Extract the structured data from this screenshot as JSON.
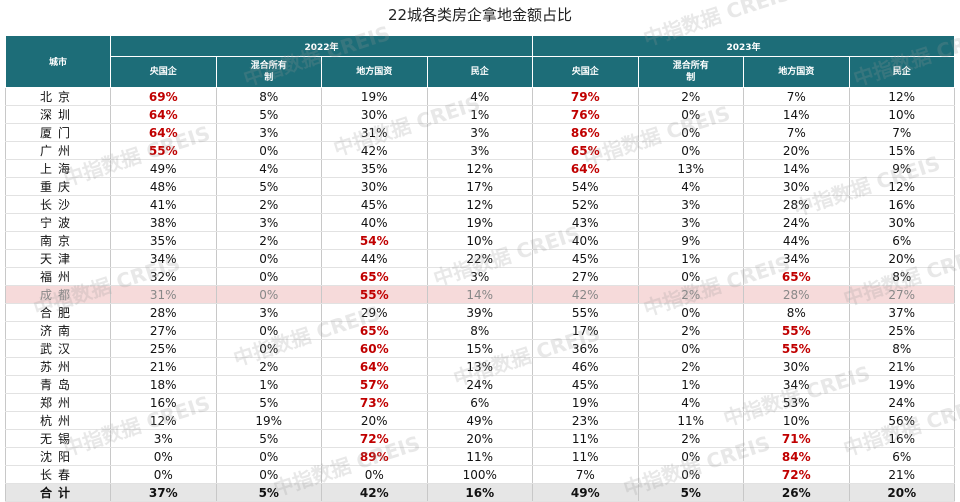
{
  "title": "22城各类房企拿地金额占比",
  "watermark": "中指数据 CREIS",
  "header": {
    "city": "城市",
    "years": [
      "2022年",
      "2023年"
    ],
    "columns": [
      "央国企",
      "混合所有制",
      "地方国资",
      "民企"
    ]
  },
  "highlight_row": 11,
  "total_row": 22,
  "rows": [
    {
      "city": "北京",
      "cells": [
        "69%",
        "8%",
        "19%",
        "4%",
        "79%",
        "2%",
        "7%",
        "12%"
      ],
      "red": [
        0,
        4
      ]
    },
    {
      "city": "深圳",
      "cells": [
        "64%",
        "5%",
        "30%",
        "1%",
        "76%",
        "0%",
        "14%",
        "10%"
      ],
      "red": [
        0,
        4
      ]
    },
    {
      "city": "厦门",
      "cells": [
        "64%",
        "3%",
        "31%",
        "3%",
        "86%",
        "0%",
        "7%",
        "7%"
      ],
      "red": [
        0,
        4
      ]
    },
    {
      "city": "广州",
      "cells": [
        "55%",
        "0%",
        "42%",
        "3%",
        "65%",
        "0%",
        "20%",
        "15%"
      ],
      "red": [
        0,
        4
      ]
    },
    {
      "city": "上海",
      "cells": [
        "49%",
        "4%",
        "35%",
        "12%",
        "64%",
        "13%",
        "14%",
        "9%"
      ],
      "red": [
        4
      ]
    },
    {
      "city": "重庆",
      "cells": [
        "48%",
        "5%",
        "30%",
        "17%",
        "54%",
        "4%",
        "30%",
        "12%"
      ],
      "red": []
    },
    {
      "city": "长沙",
      "cells": [
        "41%",
        "2%",
        "45%",
        "12%",
        "52%",
        "3%",
        "28%",
        "16%"
      ],
      "red": []
    },
    {
      "city": "宁波",
      "cells": [
        "38%",
        "3%",
        "40%",
        "19%",
        "43%",
        "3%",
        "24%",
        "30%"
      ],
      "red": []
    },
    {
      "city": "南京",
      "cells": [
        "35%",
        "2%",
        "54%",
        "10%",
        "40%",
        "9%",
        "44%",
        "6%"
      ],
      "red": [
        2
      ]
    },
    {
      "city": "天津",
      "cells": [
        "34%",
        "0%",
        "44%",
        "22%",
        "45%",
        "1%",
        "34%",
        "20%"
      ],
      "red": []
    },
    {
      "city": "福州",
      "cells": [
        "32%",
        "0%",
        "65%",
        "3%",
        "27%",
        "0%",
        "65%",
        "8%"
      ],
      "red": [
        2,
        6
      ]
    },
    {
      "city": "成都",
      "cells": [
        "31%",
        "0%",
        "55%",
        "14%",
        "42%",
        "2%",
        "28%",
        "27%"
      ],
      "red": [
        2
      ]
    },
    {
      "city": "合肥",
      "cells": [
        "28%",
        "3%",
        "29%",
        "39%",
        "55%",
        "0%",
        "8%",
        "37%"
      ],
      "red": []
    },
    {
      "city": "济南",
      "cells": [
        "27%",
        "0%",
        "65%",
        "8%",
        "17%",
        "2%",
        "55%",
        "25%"
      ],
      "red": [
        2,
        6
      ]
    },
    {
      "city": "武汉",
      "cells": [
        "25%",
        "0%",
        "60%",
        "15%",
        "36%",
        "0%",
        "55%",
        "8%"
      ],
      "red": [
        2,
        6
      ]
    },
    {
      "city": "苏州",
      "cells": [
        "21%",
        "2%",
        "64%",
        "13%",
        "46%",
        "2%",
        "30%",
        "21%"
      ],
      "red": [
        2
      ]
    },
    {
      "city": "青岛",
      "cells": [
        "18%",
        "1%",
        "57%",
        "24%",
        "45%",
        "1%",
        "34%",
        "19%"
      ],
      "red": [
        2
      ]
    },
    {
      "city": "郑州",
      "cells": [
        "16%",
        "5%",
        "73%",
        "6%",
        "19%",
        "4%",
        "53%",
        "24%"
      ],
      "red": [
        2
      ]
    },
    {
      "city": "杭州",
      "cells": [
        "12%",
        "19%",
        "20%",
        "49%",
        "23%",
        "11%",
        "10%",
        "56%"
      ],
      "red": []
    },
    {
      "city": "无锡",
      "cells": [
        "3%",
        "5%",
        "72%",
        "20%",
        "11%",
        "2%",
        "71%",
        "16%"
      ],
      "red": [
        2,
        6
      ]
    },
    {
      "city": "沈阳",
      "cells": [
        "0%",
        "0%",
        "89%",
        "11%",
        "11%",
        "0%",
        "84%",
        "6%"
      ],
      "red": [
        2,
        6
      ]
    },
    {
      "city": "长春",
      "cells": [
        "0%",
        "0%",
        "0%",
        "100%",
        "7%",
        "0%",
        "72%",
        "21%"
      ],
      "red": [
        6
      ]
    },
    {
      "city": "合计",
      "cells": [
        "37%",
        "5%",
        "42%",
        "16%",
        "49%",
        "5%",
        "26%",
        "20%"
      ],
      "red": []
    }
  ]
}
